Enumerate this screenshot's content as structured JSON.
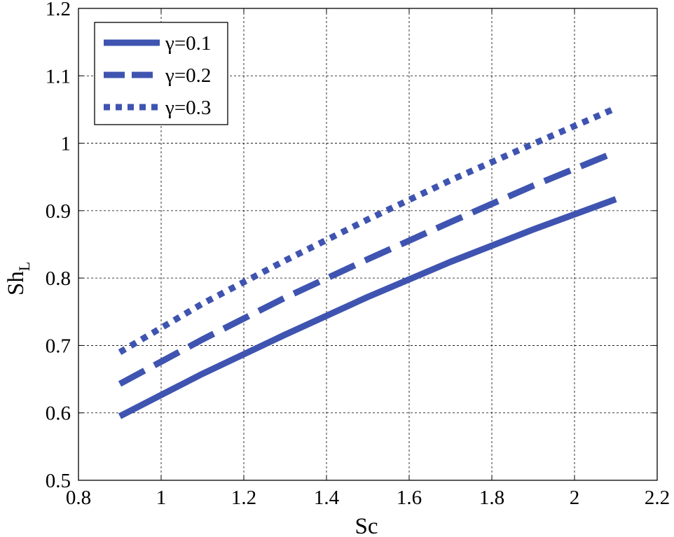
{
  "chart_data": {
    "type": "line",
    "xlabel": "Sc",
    "ylabel_main": "Sh",
    "ylabel_sub": "L",
    "xlim": [
      0.8,
      2.2
    ],
    "ylim": [
      0.5,
      1.2
    ],
    "xticks": [
      0.8,
      1,
      1.2,
      1.4,
      1.6,
      1.8,
      2,
      2.2
    ],
    "yticks": [
      0.5,
      0.6,
      0.7,
      0.8,
      0.9,
      1,
      1.1,
      1.2
    ],
    "xtick_labels": [
      "0.8",
      "1",
      "1.2",
      "1.4",
      "1.6",
      "1.8",
      "2",
      "2.2"
    ],
    "ytick_labels": [
      "0.5",
      "0.6",
      "0.7",
      "0.8",
      "0.9",
      "1",
      "1.1",
      "1.2"
    ],
    "grid": true,
    "legend_position": "top-left",
    "line_color": "#3f54b0",
    "x": [
      0.9,
      1.1,
      1.3,
      1.5,
      1.7,
      1.9,
      2.1
    ],
    "series": [
      {
        "name": "γ=0.1",
        "style": "solid",
        "values": [
          0.595,
          0.658,
          0.716,
          0.772,
          0.824,
          0.872,
          0.917
        ]
      },
      {
        "name": "γ=0.2",
        "style": "dashed",
        "values": [
          0.643,
          0.709,
          0.771,
          0.828,
          0.883,
          0.937,
          0.987
        ]
      },
      {
        "name": "γ=0.3",
        "style": "dotted",
        "values": [
          0.69,
          0.762,
          0.826,
          0.887,
          0.945,
          0.999,
          1.052
        ]
      }
    ]
  }
}
